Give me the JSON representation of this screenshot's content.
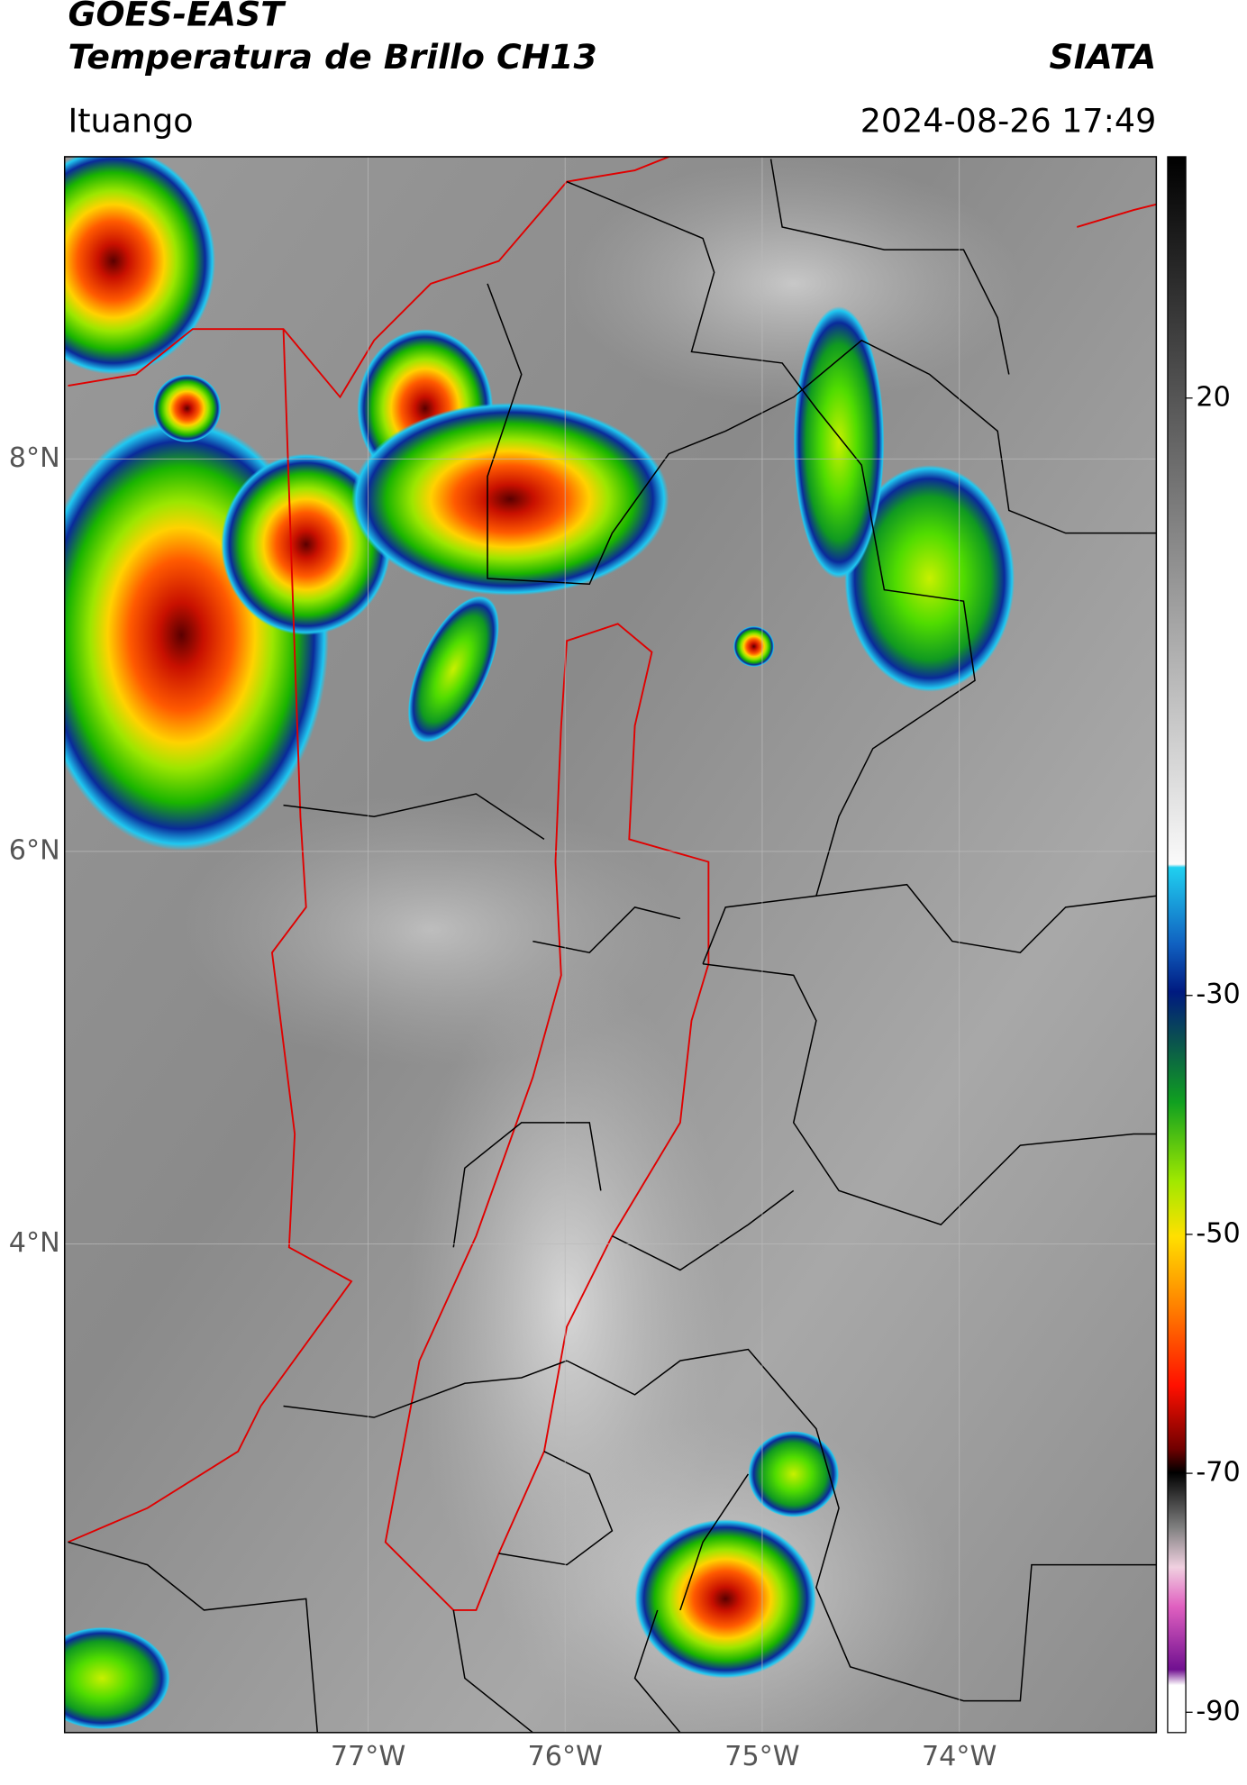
{
  "header": {
    "title_line1": "GOES-EAST",
    "title_line2": "Temperatura de Brillo CH13",
    "source": "SIATA",
    "location": "Ituango",
    "datetime": "2024-08-26 17:49"
  },
  "map": {
    "lat_range": [
      1.51,
      9.54
    ],
    "lon_range": [
      -78.54,
      -73.0
    ],
    "lat_ticks": [
      {
        "value": 8,
        "label": "8°N"
      },
      {
        "value": 6,
        "label": "6°N"
      },
      {
        "value": 4,
        "label": "4°N"
      }
    ],
    "lon_ticks": [
      {
        "value": -77,
        "label": "77°W"
      },
      {
        "value": -76,
        "label": "76°W"
      },
      {
        "value": -75,
        "label": "75°W"
      },
      {
        "value": -74,
        "label": "74°W"
      }
    ]
  },
  "colorbar": {
    "lim": [
      -91.7,
      40.2
    ],
    "ticks": [
      20,
      -30,
      -50,
      -70,
      -90
    ]
  }
}
